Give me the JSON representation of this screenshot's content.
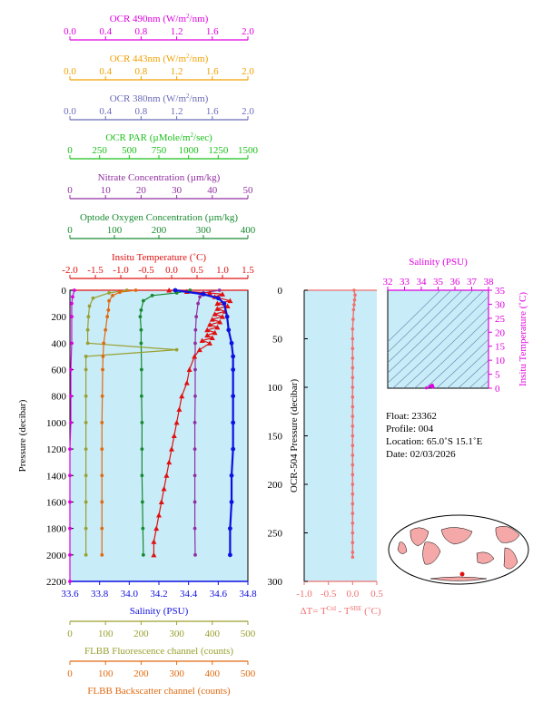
{
  "colors": {
    "ocr490": "#e000e0",
    "ocr443": "#f0a000",
    "ocr380": "#6a6ab8",
    "par": "#18c018",
    "nitrate": "#9030a0",
    "oxygen": "#188a30",
    "temperature": "#e01010",
    "salinity": "#1010e0",
    "fluorescence": "#9aa030",
    "backscatter": "#e06a10",
    "delta": "#f07070",
    "plot_bg": "#c8ecf8",
    "theta_s_lines": "#6a7ea8"
  },
  "info": {
    "float": "Float:  23362",
    "profile": "Profile:  004",
    "location": "Location:  65.0˚S  15.1˚E",
    "date": "Date:  02/03/2026"
  },
  "chart_data": [
    {
      "type": "line",
      "name": "main-profile-panel",
      "ylabel": "Pressure (decibar)",
      "ylim": [
        2200,
        0
      ],
      "yticks": [
        "0",
        "200",
        "400",
        "600",
        "800",
        "1000",
        "1200",
        "1400",
        "1600",
        "1800",
        "2000",
        "2200"
      ],
      "top_axes": [
        {
          "key": "ocr490",
          "title": "OCR 490nm (W/m²/nm)",
          "range": [
            0,
            2
          ],
          "ticks": [
            "0.0",
            "0.4",
            "0.8",
            "1.2",
            "1.6",
            "2.0"
          ]
        },
        {
          "key": "ocr443",
          "title": "OCR 443nm (W/m²/nm)",
          "range": [
            0,
            2
          ],
          "ticks": [
            "0.0",
            "0.4",
            "0.8",
            "1.2",
            "1.6",
            "2.0"
          ]
        },
        {
          "key": "ocr380",
          "title": "OCR 380nm (W/m²/nm)",
          "range": [
            0,
            2
          ],
          "ticks": [
            "0.0",
            "0.4",
            "0.8",
            "1.2",
            "1.6",
            "2.0"
          ]
        },
        {
          "key": "par",
          "title": "OCR PAR (µMole/m²/sec)",
          "range": [
            0,
            1500
          ],
          "ticks": [
            "0",
            "250",
            "500",
            "750",
            "1000",
            "1250",
            "1500"
          ]
        },
        {
          "key": "nitrate",
          "title": "Nitrate Concentration (µm/kg)",
          "range": [
            0,
            50
          ],
          "ticks": [
            "0",
            "10",
            "20",
            "30",
            "40",
            "50"
          ]
        },
        {
          "key": "oxygen",
          "title": "Optode Oxygen Concentration (µm/kg)",
          "range": [
            0,
            400
          ],
          "ticks": [
            "0",
            "100",
            "200",
            "300",
            "400"
          ]
        },
        {
          "key": "temperature",
          "title": "Insitu Temperature (˚C)",
          "range": [
            -2,
            1.5
          ],
          "ticks": [
            "-2.0",
            "-1.5",
            "-1.0",
            "-0.5",
            "0.0",
            "0.5",
            "1.0",
            "1.5"
          ]
        }
      ],
      "bottom_axes": [
        {
          "key": "salinity",
          "title": "Salinity (PSU)",
          "range": [
            33.6,
            34.8
          ],
          "ticks": [
            "33.6",
            "33.8",
            "34.0",
            "34.2",
            "34.4",
            "34.6",
            "34.8"
          ]
        },
        {
          "key": "fluorescence",
          "title": "FLBB Fluorescence channel (counts)",
          "range": [
            0,
            500
          ],
          "ticks": [
            "0",
            "100",
            "200",
            "300",
            "400",
            "500"
          ]
        },
        {
          "key": "backscatter",
          "title": "FLBB Backscatter channel (counts)",
          "range": [
            0,
            500
          ],
          "ticks": [
            "0",
            "100",
            "200",
            "300",
            "400",
            "500"
          ]
        }
      ],
      "series": [
        {
          "key": "ocr490",
          "axis": "ocr490",
          "marker": "circle",
          "points": [
            [
              0.05,
              0
            ],
            [
              0.03,
              50
            ],
            [
              0.02,
              100
            ],
            [
              0.02,
              200
            ],
            [
              0.02,
              400
            ],
            [
              0.01,
              600
            ],
            [
              0.01,
              800
            ],
            [
              0.01,
              1000
            ],
            [
              0.0,
              1200
            ],
            [
              0.0,
              1400
            ],
            [
              0.0,
              1600
            ],
            [
              0.0,
              1800
            ],
            [
              0.0,
              2000
            ],
            [
              0.0,
              2200
            ]
          ]
        },
        {
          "key": "nitrate",
          "axis": "nitrate",
          "marker": "circle",
          "points": [
            [
              42,
              0
            ],
            [
              37.5,
              20
            ],
            [
              36.5,
              50
            ],
            [
              36,
              100
            ],
            [
              35.5,
              200
            ],
            [
              35.3,
              300
            ],
            [
              35.2,
              400
            ],
            [
              35.2,
              600
            ],
            [
              35.2,
              800
            ],
            [
              35.1,
              1000
            ],
            [
              35.1,
              1200
            ],
            [
              35.1,
              1400
            ],
            [
              35.1,
              1600
            ],
            [
              35.1,
              1800
            ],
            [
              35.2,
              2000
            ]
          ]
        },
        {
          "key": "oxygen",
          "axis": "oxygen",
          "marker": "circle",
          "points": [
            [
              270,
              0
            ],
            [
              240,
              20
            ],
            [
              185,
              40
            ],
            [
              165,
              80
            ],
            [
              160,
              150
            ],
            [
              158,
              200
            ],
            [
              160,
              300
            ],
            [
              160,
              400
            ],
            [
              161,
              600
            ],
            [
              161,
              800
            ],
            [
              162,
              1000
            ],
            [
              162,
              1200
            ],
            [
              162,
              1400
            ],
            [
              163,
              1600
            ],
            [
              164,
              1800
            ],
            [
              165,
              2000
            ]
          ]
        },
        {
          "key": "temperature",
          "axis": "temperature",
          "marker": "triangle",
          "points": [
            [
              -0.05,
              0
            ],
            [
              0.3,
              10
            ],
            [
              0.75,
              20
            ],
            [
              1.0,
              30
            ],
            [
              0.85,
              50
            ],
            [
              1.15,
              80
            ],
            [
              0.9,
              100
            ],
            [
              1.1,
              120
            ],
            [
              0.9,
              140
            ],
            [
              1.05,
              160
            ],
            [
              0.85,
              180
            ],
            [
              1.0,
              200
            ],
            [
              0.8,
              220
            ],
            [
              0.95,
              240
            ],
            [
              0.75,
              260
            ],
            [
              0.9,
              280
            ],
            [
              0.7,
              300
            ],
            [
              0.85,
              320
            ],
            [
              0.7,
              340
            ],
            [
              0.8,
              360
            ],
            [
              0.6,
              380
            ],
            [
              0.75,
              400
            ],
            [
              0.55,
              450
            ],
            [
              0.45,
              500
            ],
            [
              0.35,
              600
            ],
            [
              0.3,
              700
            ],
            [
              0.2,
              800
            ],
            [
              0.15,
              900
            ],
            [
              0.1,
              1000
            ],
            [
              0.05,
              1100
            ],
            [
              0.0,
              1200
            ],
            [
              -0.05,
              1300
            ],
            [
              -0.1,
              1400
            ],
            [
              -0.15,
              1500
            ],
            [
              -0.2,
              1600
            ],
            [
              -0.25,
              1700
            ],
            [
              -0.3,
              1800
            ],
            [
              -0.35,
              1900
            ],
            [
              -0.35,
              2000
            ]
          ]
        },
        {
          "key": "salinity",
          "axis": "salinity",
          "marker": "circle",
          "points": [
            [
              34.31,
              0
            ],
            [
              34.5,
              30
            ],
            [
              34.6,
              60
            ],
            [
              34.64,
              100
            ],
            [
              34.66,
              200
            ],
            [
              34.67,
              300
            ],
            [
              34.69,
              400
            ],
            [
              34.7,
              500
            ],
            [
              34.7,
              600
            ],
            [
              34.7,
              800
            ],
            [
              34.7,
              1000
            ],
            [
              34.7,
              1200
            ],
            [
              34.69,
              1400
            ],
            [
              34.69,
              1600
            ],
            [
              34.68,
              1800
            ],
            [
              34.68,
              2000
            ]
          ]
        },
        {
          "key": "fluorescence",
          "axis": "fluorescence",
          "marker": "circle",
          "points": [
            [
              160,
              0
            ],
            [
              110,
              20
            ],
            [
              65,
              60
            ],
            [
              55,
              120
            ],
            [
              52,
              200
            ],
            [
              50,
              300
            ],
            [
              50,
              400
            ],
            [
              300,
              450
            ],
            [
              45,
              500
            ],
            [
              45,
              600
            ],
            [
              45,
              800
            ],
            [
              45,
              1000
            ],
            [
              45,
              1200
            ],
            [
              45,
              1400
            ],
            [
              45,
              1600
            ],
            [
              45,
              1800
            ],
            [
              45,
              2000
            ]
          ]
        },
        {
          "key": "backscatter",
          "axis": "backscatter",
          "marker": "circle",
          "points": [
            [
              185,
              0
            ],
            [
              140,
              15
            ],
            [
              120,
              40
            ],
            [
              110,
              80
            ],
            [
              108,
              150
            ],
            [
              105,
              200
            ],
            [
              100,
              300
            ],
            [
              95,
              400
            ],
            [
              93,
              500
            ],
            [
              92,
              600
            ],
            [
              91,
              800
            ],
            [
              90,
              1000
            ],
            [
              90,
              1200
            ],
            [
              90,
              1400
            ],
            [
              90,
              1600
            ],
            [
              90,
              1800
            ],
            [
              90,
              2000
            ]
          ]
        }
      ]
    },
    {
      "type": "scatter",
      "name": "delta-t-panel",
      "xlabel": "ΔT= T^Ctd - T^SBE (˚C)",
      "ylabel": "OCR-504 Pressure (decibar)",
      "xlim": [
        -1.0,
        0.5
      ],
      "ylim": [
        300,
        0
      ],
      "xticks": [
        "-1.0",
        "-0.5",
        "0.0",
        "0.5"
      ],
      "yticks": [
        "0",
        "50",
        "100",
        "150",
        "200",
        "250",
        "300"
      ],
      "points": [
        [
          0.03,
          0
        ],
        [
          0.05,
          5
        ],
        [
          0.04,
          10
        ],
        [
          0.03,
          15
        ],
        [
          0.02,
          20
        ],
        [
          0.01,
          30
        ],
        [
          0.0,
          40
        ],
        [
          0.0,
          50
        ],
        [
          0.0,
          60
        ],
        [
          0.0,
          70
        ],
        [
          0.0,
          80
        ],
        [
          0.0,
          90
        ],
        [
          0.0,
          100
        ],
        [
          0.0,
          110
        ],
        [
          0.0,
          120
        ],
        [
          0.0,
          130
        ],
        [
          0.0,
          140
        ],
        [
          0.0,
          150
        ],
        [
          0.0,
          160
        ],
        [
          0.0,
          170
        ],
        [
          0.0,
          180
        ],
        [
          0.0,
          190
        ],
        [
          0.0,
          200
        ],
        [
          0.0,
          210
        ],
        [
          0.0,
          220
        ],
        [
          0.0,
          230
        ],
        [
          0.0,
          240
        ],
        [
          0.0,
          250
        ],
        [
          0.0,
          260
        ],
        [
          0.0,
          270
        ],
        [
          0.0,
          275
        ]
      ]
    },
    {
      "type": "scatter",
      "name": "theta-s-panel",
      "xlabel": "Salinity (PSU)",
      "ylabel": "Insitu Temperature (˚C)",
      "xlim": [
        32,
        38
      ],
      "ylim": [
        0,
        35
      ],
      "xticks": [
        "32",
        "33",
        "34",
        "35",
        "36",
        "37",
        "38"
      ],
      "yticks": [
        "0",
        "5",
        "10",
        "15",
        "20",
        "25",
        "30",
        "35"
      ],
      "points": [
        [
          34.3,
          0.1
        ],
        [
          34.5,
          0.6
        ],
        [
          34.6,
          0.9
        ],
        [
          34.65,
          1.1
        ],
        [
          34.68,
          0.7
        ],
        [
          34.7,
          0.3
        ]
      ]
    }
  ]
}
